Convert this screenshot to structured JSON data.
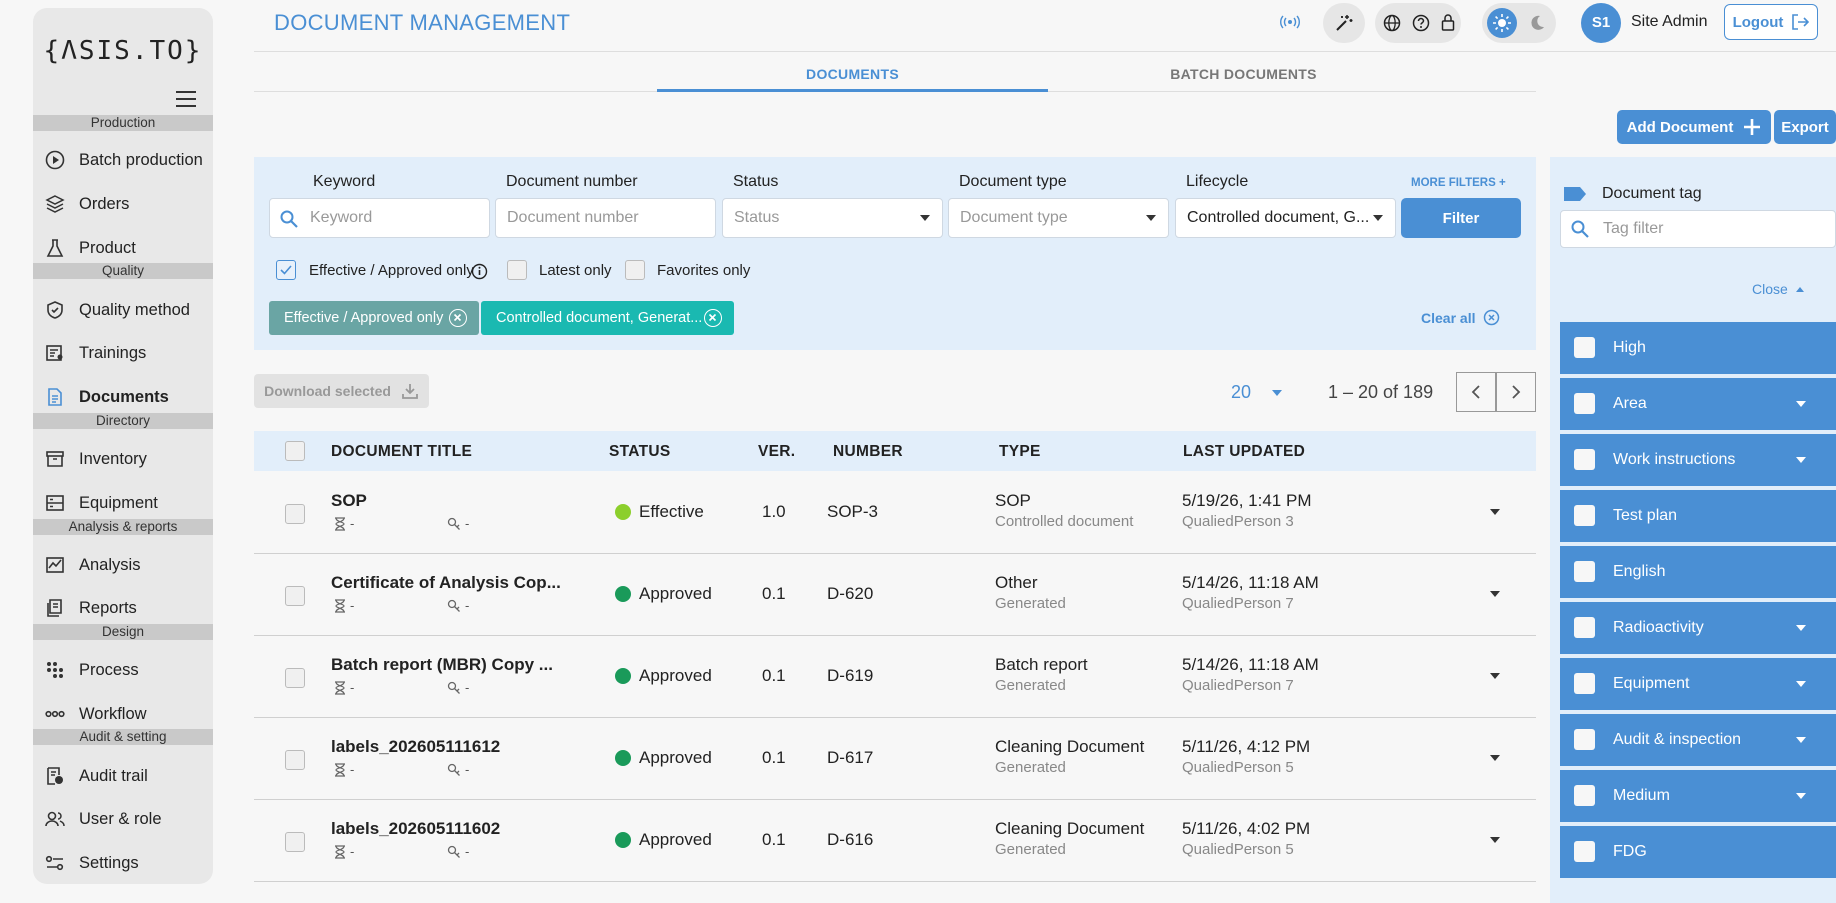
{
  "app": {
    "logo": "{ΛSIS.TO}",
    "page_title": "DOCUMENT MANAGEMENT"
  },
  "colors": {
    "accent": "#4a8fd4",
    "effective": "#8ccf2c",
    "approved": "#1a9a5a",
    "chip_grey": "#6aa5a4",
    "chip_teal": "#1ab9b1"
  },
  "sidebar": {
    "sections": [
      "Production",
      "Quality",
      "Directory",
      "Analysis & reports",
      "Design",
      "Audit & setting"
    ],
    "items": [
      {
        "label": "Batch production",
        "icon": "play-circle-icon"
      },
      {
        "label": "Orders",
        "icon": "layers-icon"
      },
      {
        "label": "Product",
        "icon": "flask-icon"
      },
      {
        "label": "Quality method",
        "icon": "shield-check-icon"
      },
      {
        "label": "Trainings",
        "icon": "training-icon"
      },
      {
        "label": "Documents",
        "icon": "document-icon",
        "active": true
      },
      {
        "label": "Inventory",
        "icon": "archive-icon"
      },
      {
        "label": "Equipment",
        "icon": "equipment-icon"
      },
      {
        "label": "Analysis",
        "icon": "chart-icon"
      },
      {
        "label": "Reports",
        "icon": "report-icon"
      },
      {
        "label": "Process",
        "icon": "process-icon"
      },
      {
        "label": "Workflow",
        "icon": "workflow-icon"
      },
      {
        "label": "Audit trail",
        "icon": "audit-icon"
      },
      {
        "label": "User & role",
        "icon": "users-icon"
      },
      {
        "label": "Settings",
        "icon": "settings-icon"
      }
    ]
  },
  "header": {
    "user_initials": "S1",
    "user_name": "Site Admin",
    "logout_label": "Logout"
  },
  "tabs": [
    "DOCUMENTS",
    "BATCH DOCUMENTS"
  ],
  "actions": {
    "add_label": "Add Document",
    "export_label": "Export"
  },
  "filters": {
    "keyword": {
      "label": "Keyword",
      "placeholder": "Keyword"
    },
    "doc_number": {
      "label": "Document number",
      "placeholder": "Document number"
    },
    "status": {
      "label": "Status",
      "placeholder": "Status"
    },
    "doc_type": {
      "label": "Document type",
      "placeholder": "Document type"
    },
    "lifecycle": {
      "label": "Lifecycle",
      "value": "Controlled document, G..."
    },
    "more_filters": "MORE FILTERS +",
    "filter_button": "Filter",
    "checks": [
      {
        "label": "Effective / Approved only",
        "checked": true
      },
      {
        "label": "Latest only",
        "checked": false
      },
      {
        "label": "Favorites only",
        "checked": false
      }
    ],
    "chips": [
      "Effective / Approved only",
      "Controlled document, Generat..."
    ],
    "clear_all": "Clear all"
  },
  "table_controls": {
    "download_label": "Download selected",
    "per_page": "20",
    "range": "1 – 20 of 189"
  },
  "table": {
    "headers": [
      "DOCUMENT TITLE",
      "STATUS",
      "VER.",
      "NUMBER",
      "TYPE",
      "LAST UPDATED"
    ],
    "rows": [
      {
        "title": "SOP",
        "meta1": "-",
        "meta2": "-",
        "status": "Effective",
        "ver": "1.0",
        "number": "SOP-3",
        "type": "SOP",
        "subtype": "Controlled document",
        "updated": "5/19/26, 1:41 PM",
        "by": "QualiedPerson 3"
      },
      {
        "title": "Certificate of Analysis Cop...",
        "meta1": "-",
        "meta2": "-",
        "status": "Approved",
        "ver": "0.1",
        "number": "D-620",
        "type": "Other",
        "subtype": "Generated",
        "updated": "5/14/26, 11:18 AM",
        "by": "QualiedPerson 7"
      },
      {
        "title": "Batch report (MBR) Copy ...",
        "meta1": "-",
        "meta2": "-",
        "status": "Approved",
        "ver": "0.1",
        "number": "D-619",
        "type": "Batch report",
        "subtype": "Generated",
        "updated": "5/14/26, 11:18 AM",
        "by": "QualiedPerson 7"
      },
      {
        "title": "labels_202605111612",
        "meta1": "-",
        "meta2": "-",
        "status": "Approved",
        "ver": "0.1",
        "number": "D-617",
        "type": "Cleaning Document",
        "subtype": "Generated",
        "updated": "5/11/26, 4:12 PM",
        "by": "QualiedPerson 5"
      },
      {
        "title": "labels_202605111602",
        "meta1": "-",
        "meta2": "-",
        "status": "Approved",
        "ver": "0.1",
        "number": "D-616",
        "type": "Cleaning Document",
        "subtype": "Generated",
        "updated": "5/11/26, 4:02 PM",
        "by": "QualiedPerson 5"
      }
    ]
  },
  "tags": {
    "heading": "Document tag",
    "placeholder": "Tag filter",
    "close_label": "Close",
    "items": [
      {
        "label": "High",
        "expandable": false
      },
      {
        "label": "Area",
        "expandable": true
      },
      {
        "label": "Work instructions",
        "expandable": true
      },
      {
        "label": "Test plan",
        "expandable": false
      },
      {
        "label": "English",
        "expandable": false
      },
      {
        "label": "Radioactivity",
        "expandable": true
      },
      {
        "label": "Equipment",
        "expandable": true
      },
      {
        "label": "Audit & inspection",
        "expandable": true
      },
      {
        "label": "Medium",
        "expandable": true
      },
      {
        "label": "FDG",
        "expandable": false
      }
    ]
  }
}
